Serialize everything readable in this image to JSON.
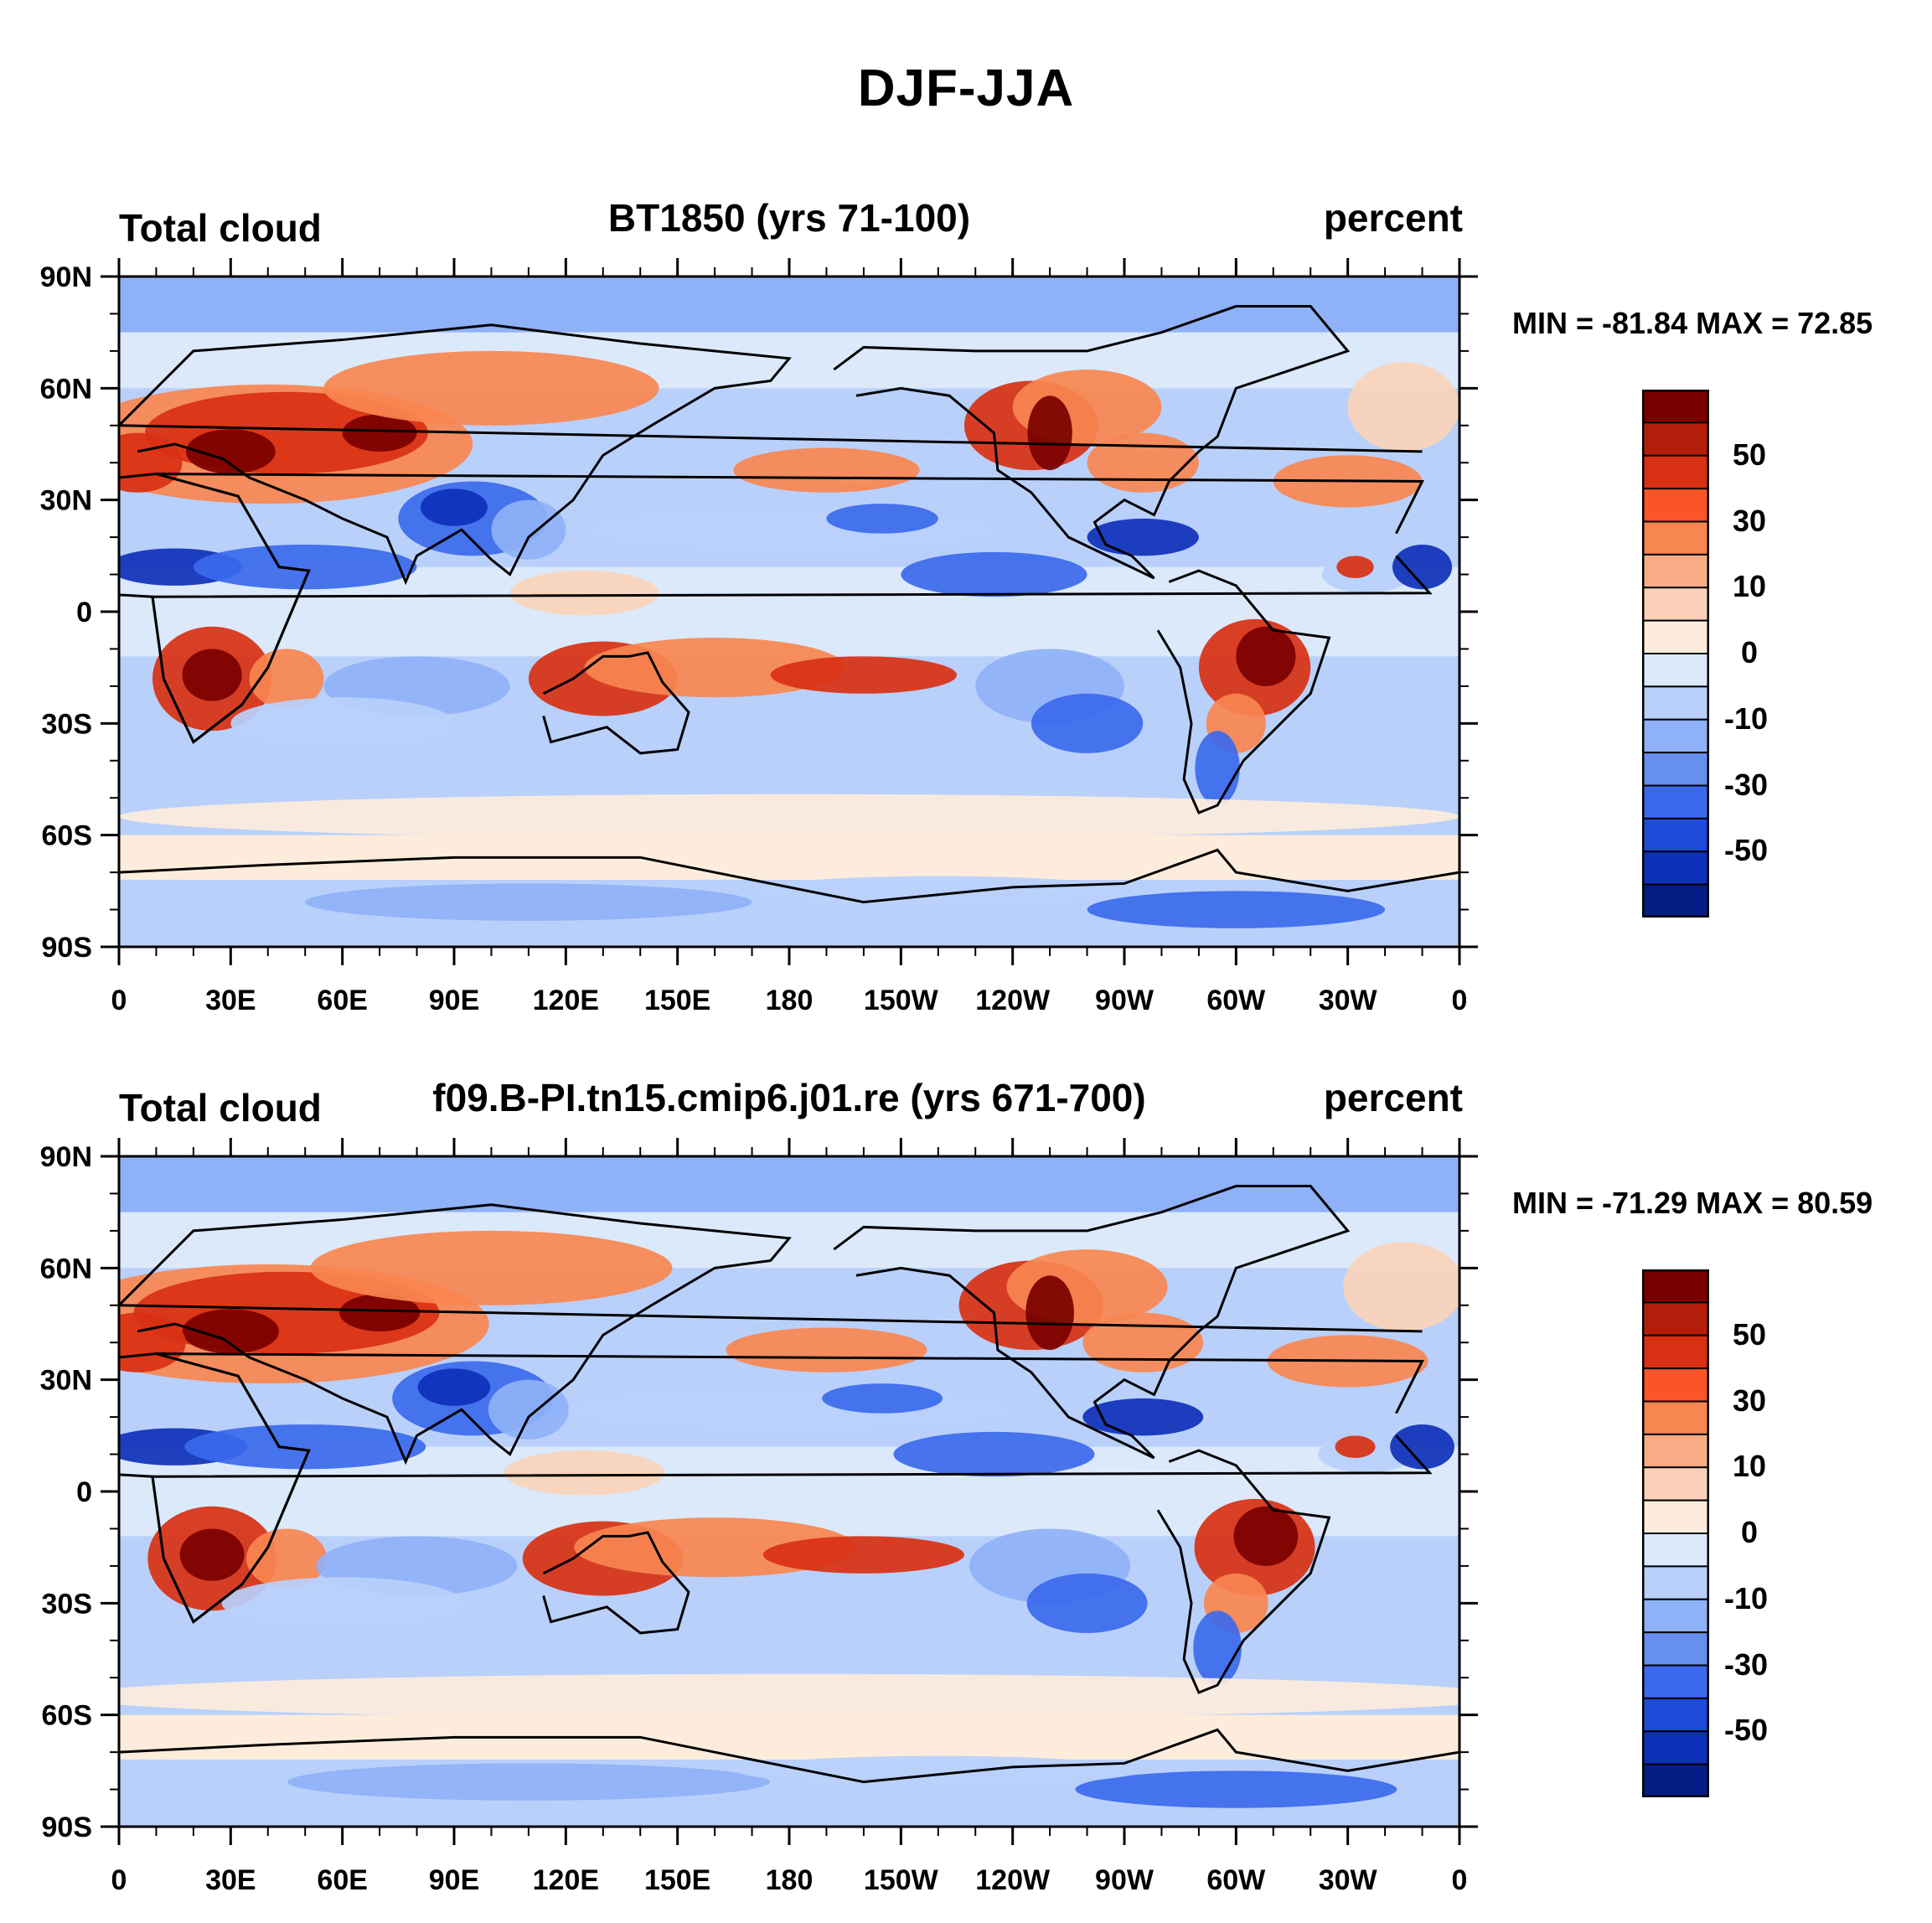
{
  "figure": {
    "title": "DJF-JJA",
    "panels": [
      {
        "variable": "Total cloud",
        "case": "BT1850 (yrs 71-100)",
        "units": "percent",
        "minmax": "MIN = -81.84 MAX =  72.85",
        "colorbar_labels": [
          "50",
          "30",
          "10",
          "0",
          "-10",
          "-30",
          "-50"
        ]
      },
      {
        "variable": "Total cloud",
        "case": "f09.B-PI.tn15.cmip6.j01.re (yrs 671-700)",
        "units": "percent",
        "minmax": "MIN = -71.29 MAX =  80.59",
        "colorbar_labels": [
          "50",
          "30",
          "10",
          "0",
          "-10",
          "-30",
          "-50"
        ]
      }
    ],
    "colorbar_colors": [
      "#7a0000",
      "#b51d0b",
      "#d83012",
      "#fb5527",
      "#f88650",
      "#f8ac85",
      "#fbd2b9",
      "#fdecdc",
      "#dbe9fb",
      "#b9d0fb",
      "#8fb1f7",
      "#6590f0",
      "#3b69ec",
      "#1e4bd9",
      "#0e30b8",
      "#061c85"
    ],
    "map_fill_colors": {
      "deep_red": "#7a0000",
      "red": "#d83012",
      "orange": "#f88650",
      "peach": "#fbd2b9",
      "cream": "#fdecdc",
      "pale_blue": "#dbe9fb",
      "light_blue": "#b9d0fb",
      "mid_blue": "#8fb1f7",
      "blue": "#3b69ec",
      "dark_blue": "#0e30b8"
    },
    "lat_labels": [
      "90N",
      "60N",
      "30N",
      "0",
      "30S",
      "60S",
      "90S"
    ],
    "lon_labels": [
      "0",
      "30E",
      "60E",
      "90E",
      "120E",
      "150E",
      "180",
      "150W",
      "120W",
      "90W",
      "60W",
      "30W",
      "0"
    ]
  }
}
